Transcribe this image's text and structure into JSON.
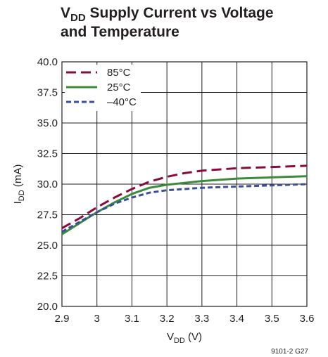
{
  "title": {
    "prefix": "V",
    "sub": "DD",
    "rest": " Supply Current vs Voltage",
    "line2": "and Temperature"
  },
  "figure_code": "9101-2 G27",
  "colors": {
    "c85": "#8b0a3c",
    "c25": "#3a8c3c",
    "cneg40": "#3a4f9c",
    "grid": "#231f20"
  },
  "chart_data": {
    "type": "line",
    "xlabel": {
      "main": "V",
      "sub": "DD",
      "unit": " (V)"
    },
    "ylabel": {
      "main": "I",
      "sub": "DD",
      "unit": " (mA)"
    },
    "xlim": [
      2.9,
      3.6
    ],
    "ylim": [
      20.0,
      40.0
    ],
    "x_ticks": [
      "2.9",
      "3",
      "3.1",
      "3.2",
      "3.3",
      "3.4",
      "3.5",
      "3.6"
    ],
    "y_ticks": [
      "20.0",
      "22.5",
      "25.0",
      "27.5",
      "30.0",
      "32.5",
      "35.0",
      "37.5",
      "40.0"
    ],
    "grid": true,
    "legend_position": "top-left",
    "series": [
      {
        "name": "85°C",
        "style": "long-dash",
        "x": [
          2.9,
          2.95,
          3.0,
          3.05,
          3.1,
          3.15,
          3.2,
          3.25,
          3.3,
          3.35,
          3.4,
          3.45,
          3.5,
          3.55,
          3.6
        ],
        "y": [
          26.4,
          27.2,
          28.1,
          28.9,
          29.6,
          30.2,
          30.6,
          30.9,
          31.1,
          31.2,
          31.3,
          31.35,
          31.4,
          31.45,
          31.5
        ]
      },
      {
        "name": "25°C",
        "style": "solid",
        "x": [
          2.9,
          2.95,
          3.0,
          3.05,
          3.1,
          3.15,
          3.2,
          3.25,
          3.3,
          3.35,
          3.4,
          3.45,
          3.5,
          3.55,
          3.6
        ],
        "y": [
          25.9,
          26.8,
          27.7,
          28.5,
          29.2,
          29.7,
          29.95,
          30.1,
          30.25,
          30.35,
          30.45,
          30.5,
          30.55,
          30.6,
          30.65
        ]
      },
      {
        "name": "–40°C",
        "style": "short-dash",
        "x": [
          2.9,
          2.95,
          3.0,
          3.05,
          3.1,
          3.15,
          3.2,
          3.25,
          3.3,
          3.35,
          3.4,
          3.45,
          3.5,
          3.55,
          3.6
        ],
        "y": [
          26.1,
          26.9,
          27.7,
          28.4,
          28.9,
          29.3,
          29.5,
          29.6,
          29.7,
          29.75,
          29.8,
          29.85,
          29.9,
          29.95,
          30.0
        ]
      }
    ]
  }
}
